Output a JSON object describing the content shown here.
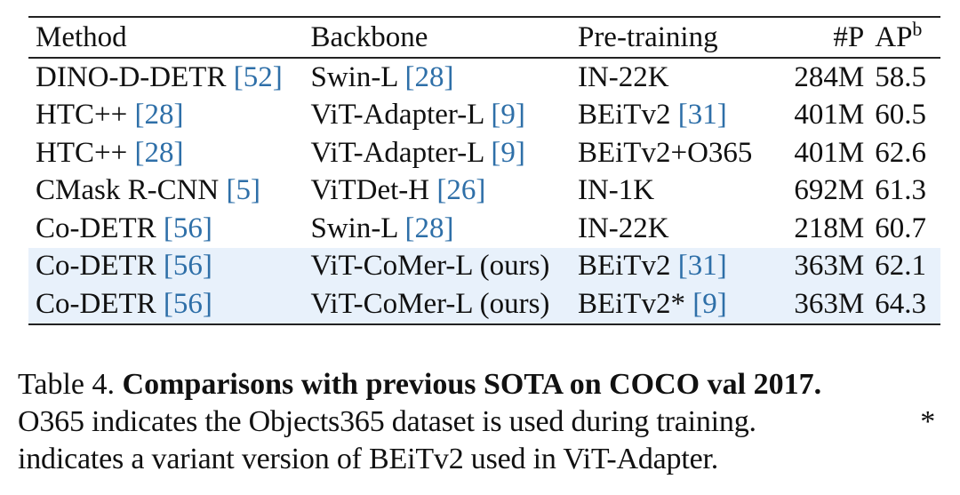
{
  "table": {
    "headers": {
      "method": "Method",
      "backbone": "Backbone",
      "pretraining": "Pre-training",
      "params": "#P",
      "ap": "AP",
      "ap_sup": "b"
    },
    "rows": [
      {
        "method": "DINO-D-DETR",
        "method_cite": "[52]",
        "backbone": "Swin-L",
        "backbone_cite": "[28]",
        "pretraining": "IN-22K",
        "pretraining_cite": "",
        "params": "284M",
        "ap": "58.5"
      },
      {
        "method": "HTC++",
        "method_cite": "[28]",
        "backbone": "ViT-Adapter-L",
        "backbone_cite": "[9]",
        "pretraining": "BEiTv2",
        "pretraining_cite": "[31]",
        "params": "401M",
        "ap": "60.5"
      },
      {
        "method": "HTC++",
        "method_cite": "[28]",
        "backbone": "ViT-Adapter-L",
        "backbone_cite": "[9]",
        "pretraining": "BEiTv2+O365",
        "pretraining_cite": "",
        "params": "401M",
        "ap": "62.6"
      },
      {
        "method": "CMask R-CNN",
        "method_cite": "[5]",
        "backbone": "ViTDet-H",
        "backbone_cite": "[26]",
        "pretraining": "IN-1K",
        "pretraining_cite": "",
        "params": "692M",
        "ap": "61.3"
      },
      {
        "method": "Co-DETR",
        "method_cite": "[56]",
        "backbone": "Swin-L",
        "backbone_cite": "[28]",
        "pretraining": "IN-22K",
        "pretraining_cite": "",
        "params": "218M",
        "ap": "60.7"
      },
      {
        "method": "Co-DETR",
        "method_cite": "[56]",
        "backbone": "ViT-CoMer-L (ours)",
        "backbone_cite": "",
        "pretraining": "BEiTv2",
        "pretraining_cite": "[31]",
        "params": "363M",
        "ap": "62.1"
      },
      {
        "method": "Co-DETR",
        "method_cite": "[56]",
        "backbone": "ViT-CoMer-L (ours)",
        "backbone_cite": "",
        "pretraining": "BEiTv2*",
        "pretraining_cite": "[9]",
        "params": "363M",
        "ap": "64.3"
      }
    ]
  },
  "caption": {
    "label": "Table 4.",
    "title": "Comparisons with previous SOTA on COCO val 2017.",
    "line2": "O365 indicates the Objects365 dataset is used during training.",
    "star": "*",
    "line3": "indicates a variant version of BEiTv2 used in ViT-Adapter."
  },
  "colors": {
    "citation": "#2e6fa8",
    "highlight_row": "#e8f1fb",
    "text": "#111111"
  }
}
